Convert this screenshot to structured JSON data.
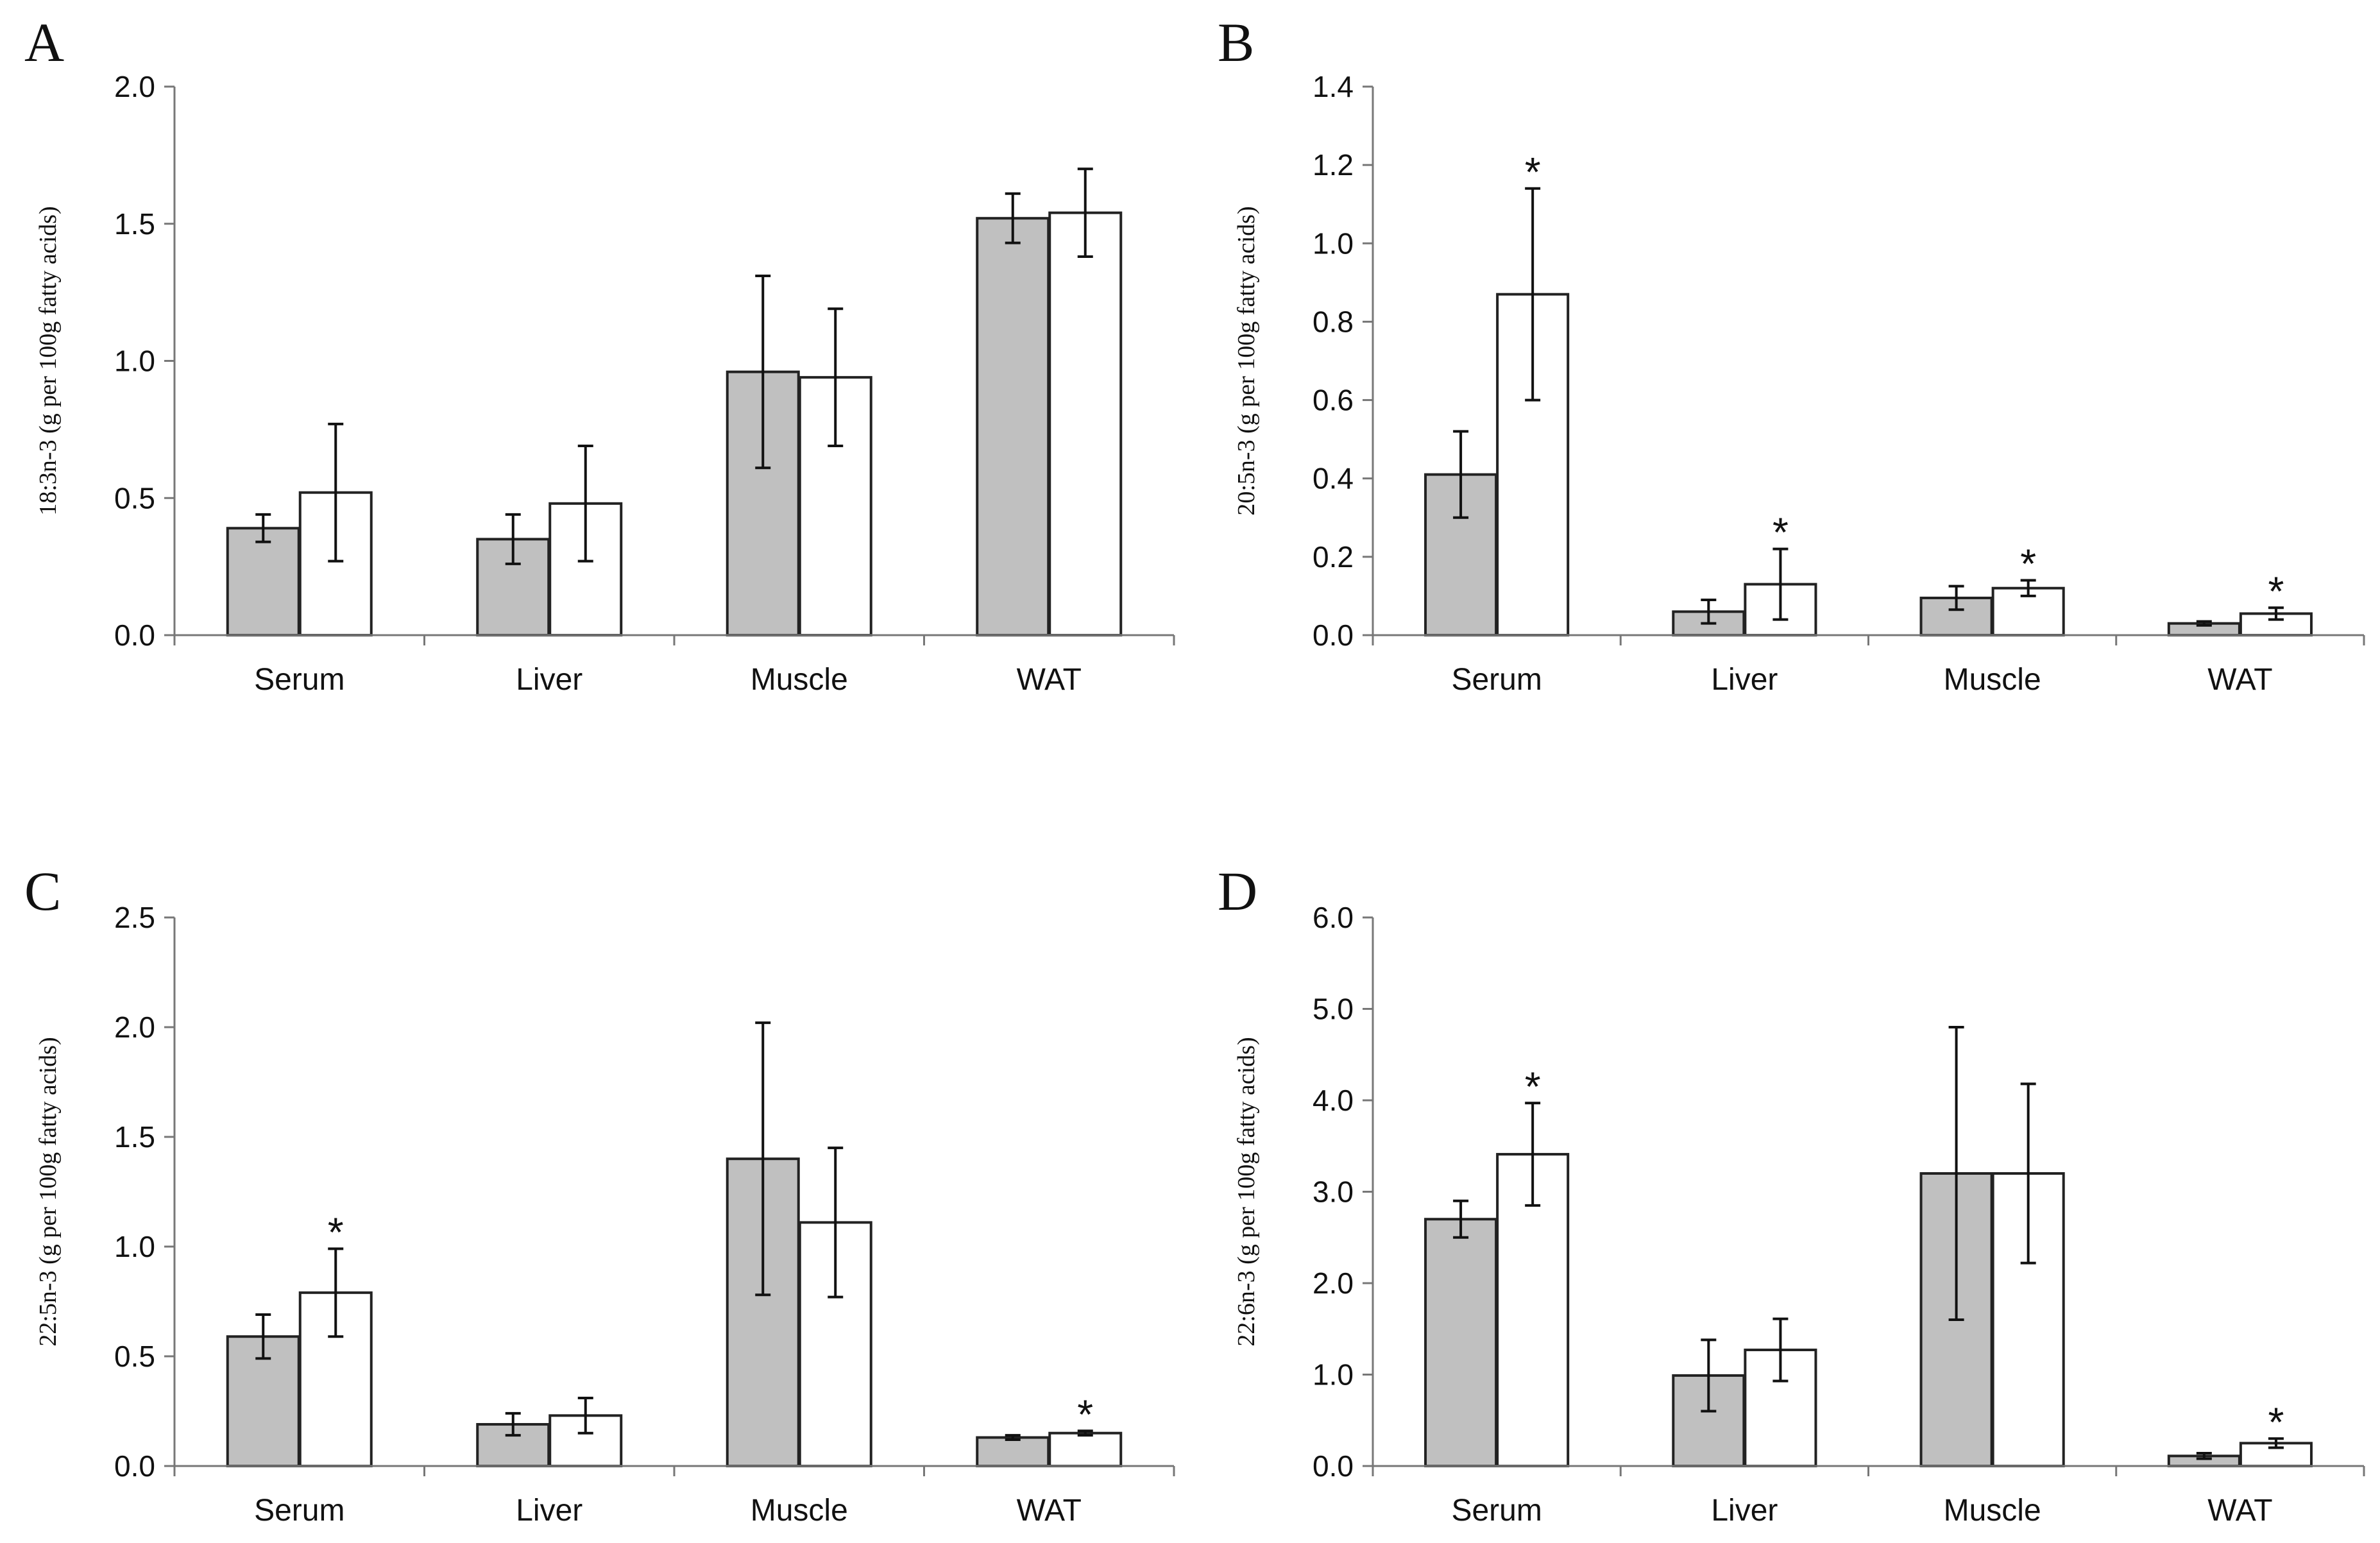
{
  "colors": {
    "series1": "#c0c0c0",
    "series2": "#ffffff",
    "axis": "#777777",
    "bar_stroke": "#222222"
  },
  "chart_data": [
    {
      "panel": "A",
      "type": "bar",
      "ylabel": "18:3n-3 (g per 100g fatty acids)",
      "categories": [
        "Serum",
        "Liver",
        "Muscle",
        "WAT"
      ],
      "ylim": [
        0,
        2.0
      ],
      "yticks": [
        "0.0",
        "0.5",
        "1.0",
        "1.5",
        "2.0"
      ],
      "series": [
        {
          "name": "series 1 (grey)",
          "values": [
            0.39,
            0.35,
            0.96,
            1.52
          ],
          "errors": [
            0.05,
            0.09,
            0.35,
            0.09
          ]
        },
        {
          "name": "series 2 (white)",
          "values": [
            0.52,
            0.48,
            0.94,
            1.54
          ],
          "errors": [
            0.25,
            0.21,
            0.25,
            0.16
          ]
        }
      ],
      "significance": []
    },
    {
      "panel": "B",
      "type": "bar",
      "ylabel": "20:5n-3 (g per 100g fatty acids)",
      "categories": [
        "Serum",
        "Liver",
        "Muscle",
        "WAT"
      ],
      "ylim": [
        0,
        1.4
      ],
      "yticks": [
        "0.0",
        "0.2",
        "0.4",
        "0.6",
        "0.8",
        "1.0",
        "1.2",
        "1.4"
      ],
      "series": [
        {
          "name": "series 1 (grey)",
          "values": [
            0.41,
            0.06,
            0.095,
            0.03
          ],
          "errors": [
            0.11,
            0.03,
            0.03,
            0.005
          ]
        },
        {
          "name": "series 2 (white)",
          "values": [
            0.87,
            0.13,
            0.12,
            0.055
          ],
          "errors": [
            0.27,
            0.09,
            0.02,
            0.015
          ]
        }
      ],
      "significance": [
        {
          "category": "Serum",
          "series": 1,
          "label": "*"
        },
        {
          "category": "Liver",
          "series": 1,
          "label": "*"
        },
        {
          "category": "Muscle",
          "series": 1,
          "label": "*"
        },
        {
          "category": "WAT",
          "series": 1,
          "label": "*"
        }
      ]
    },
    {
      "panel": "C",
      "type": "bar",
      "ylabel": "22:5n-3 (g per 100g fatty acids)",
      "categories": [
        "Serum",
        "Liver",
        "Muscle",
        "WAT"
      ],
      "ylim": [
        0,
        2.5
      ],
      "yticks": [
        "0.0",
        "0.5",
        "1.0",
        "1.5",
        "2.0",
        "2.5"
      ],
      "series": [
        {
          "name": "series 1 (grey)",
          "values": [
            0.59,
            0.19,
            1.4,
            0.13
          ],
          "errors": [
            0.1,
            0.05,
            0.62,
            0.01
          ]
        },
        {
          "name": "series 2 (white)",
          "values": [
            0.79,
            0.23,
            1.11,
            0.15
          ],
          "errors": [
            0.2,
            0.08,
            0.34,
            0.01
          ]
        }
      ],
      "significance": [
        {
          "category": "Serum",
          "series": 1,
          "label": "*"
        },
        {
          "category": "WAT",
          "series": 1,
          "label": "*"
        }
      ]
    },
    {
      "panel": "D",
      "type": "bar",
      "ylabel": "22:6n-3 (g per 100g fatty acids)",
      "categories": [
        "Serum",
        "Liver",
        "Muscle",
        "WAT"
      ],
      "ylim": [
        0,
        6.0
      ],
      "yticks": [
        "0.0",
        "1.0",
        "2.0",
        "3.0",
        "4.0",
        "5.0",
        "6.0"
      ],
      "series": [
        {
          "name": "series 1 (grey)",
          "values": [
            2.7,
            0.99,
            3.2,
            0.11
          ],
          "errors": [
            0.2,
            0.39,
            1.6,
            0.03
          ]
        },
        {
          "name": "series 2 (white)",
          "values": [
            3.41,
            1.27,
            3.2,
            0.25
          ],
          "errors": [
            0.56,
            0.34,
            0.98,
            0.05
          ]
        }
      ],
      "significance": [
        {
          "category": "Serum",
          "series": 1,
          "label": "*"
        },
        {
          "category": "WAT",
          "series": 1,
          "label": "*"
        }
      ]
    }
  ]
}
